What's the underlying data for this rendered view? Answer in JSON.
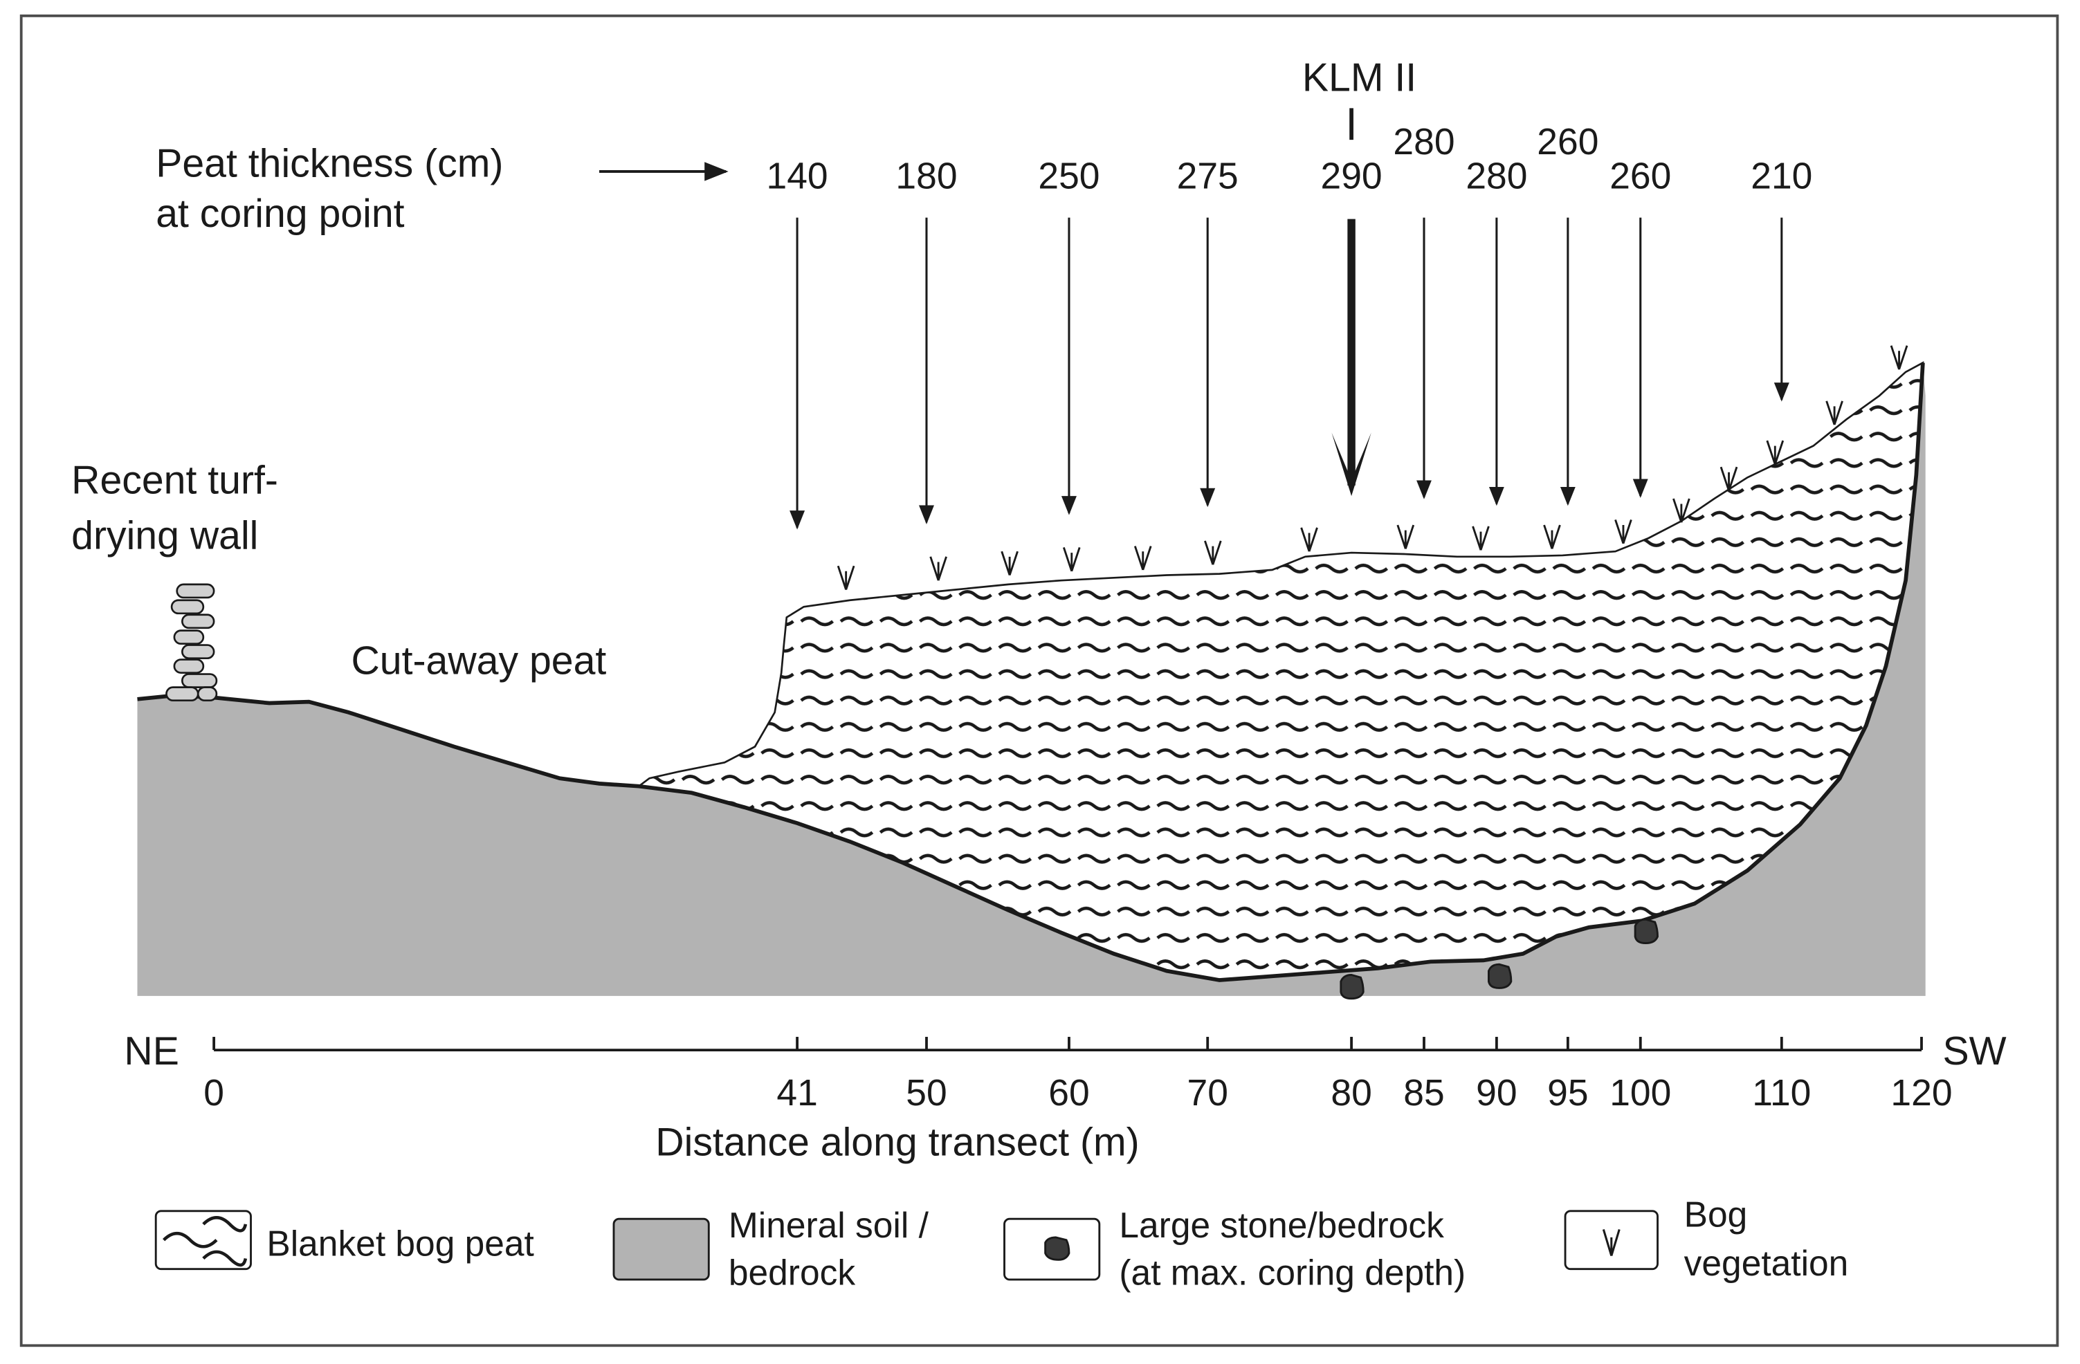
{
  "header": {
    "peat_label_line1": "Peat thickness (cm)",
    "peat_label_line2": "at coring point",
    "klm_label": "KLM II"
  },
  "labels": {
    "wall_line1": "Recent turf-",
    "wall_line2": "drying wall",
    "cutaway": "Cut-away peat"
  },
  "axis": {
    "left_dir": "NE",
    "right_dir": "SW",
    "title": "Distance along transect (m)",
    "ticks": [
      {
        "label": "0"
      },
      {
        "label": "41"
      },
      {
        "label": "50"
      },
      {
        "label": "60"
      },
      {
        "label": "70"
      },
      {
        "label": "80"
      },
      {
        "label": "85"
      },
      {
        "label": "90"
      },
      {
        "label": "95"
      },
      {
        "label": "100"
      },
      {
        "label": "110"
      },
      {
        "label": "120"
      }
    ]
  },
  "coring_points": [
    {
      "distance": "41",
      "thickness": "140"
    },
    {
      "distance": "50",
      "thickness": "180"
    },
    {
      "distance": "60",
      "thickness": "250"
    },
    {
      "distance": "70",
      "thickness": "275"
    },
    {
      "distance": "80",
      "thickness": "290"
    },
    {
      "distance": "85",
      "thickness": "280"
    },
    {
      "distance": "90",
      "thickness": "280"
    },
    {
      "distance": "95",
      "thickness": "260"
    },
    {
      "distance": "100",
      "thickness": "260"
    },
    {
      "distance": "110",
      "thickness": "210"
    }
  ],
  "legend": {
    "peat": "Blanket bog peat",
    "mineral_line1": "Mineral soil /",
    "mineral_line2": "bedrock",
    "stone_line1": "Large stone/bedrock",
    "stone_line2": "(at max. coring depth)",
    "veg_line1": "Bog",
    "veg_line2": "vegetation"
  },
  "colors": {
    "mineral_fill": "#b3b3b3",
    "ink": "#1a1a1a",
    "frame": "#4d4d4d"
  }
}
